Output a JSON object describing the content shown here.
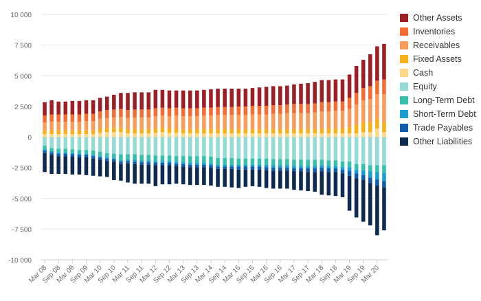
{
  "chart_data": {
    "type": "bar",
    "stacked": true,
    "title": "",
    "xlabel": "",
    "ylabel": "",
    "ylim": [
      -10000,
      10000
    ],
    "yticks": [
      -10000,
      -7500,
      -5000,
      -2500,
      0,
      2500,
      5000,
      7500,
      10000
    ],
    "ytick_labels": [
      "-10 000",
      "-7 500",
      "-5 000",
      "-2 500",
      "0",
      "2 500",
      "5 000",
      "7 500",
      "10 000"
    ],
    "grid": true,
    "legend_position": "right",
    "xtick_labels": [
      "Mar 08",
      "Sep 08",
      "Mar 09",
      "Sep 09",
      "Mar 10",
      "Sep 10",
      "Mar 11",
      "Sep 11",
      "Mar 12",
      "Sep 12",
      "Mar 13",
      "Sep 13",
      "Mar 14",
      "Sep 14",
      "Mar 15",
      "Sep 15",
      "Mar 16",
      "Sep 16",
      "Mar 17",
      "Sep 17",
      "Mar 18",
      "Sep 18",
      "Mar 19",
      "Sep 19",
      "Mar 20"
    ],
    "categories": [
      "Q1 08",
      "Q2 08",
      "Q3 08",
      "Q4 08",
      "Q1 09",
      "Q2 09",
      "Q3 09",
      "Q4 09",
      "Q1 10",
      "Q2 10",
      "Q3 10",
      "Q4 10",
      "Q1 11",
      "Q2 11",
      "Q3 11",
      "Q4 11",
      "Q1 12",
      "Q2 12",
      "Q3 12",
      "Q4 12",
      "Q1 13",
      "Q2 13",
      "Q3 13",
      "Q4 13",
      "Q1 14",
      "Q2 14",
      "Q3 14",
      "Q4 14",
      "Q1 15",
      "Q2 15",
      "Q3 15",
      "Q4 15",
      "Q1 16",
      "Q2 16",
      "Q3 16",
      "Q4 16",
      "Q1 17",
      "Q2 17",
      "Q3 17",
      "Q4 17",
      "Q1 18",
      "Q2 18",
      "Q3 18",
      "Q4 18",
      "Q1 19",
      "Q2 19",
      "Q3 19",
      "Q4 19",
      "Q1 20",
      "Q2 20"
    ],
    "asset_series": [
      {
        "name": "Cash",
        "color": "#FDD888",
        "values": [
          250,
          250,
          250,
          250,
          250,
          250,
          250,
          250,
          350,
          400,
          400,
          400,
          300,
          300,
          300,
          300,
          350,
          400,
          350,
          350,
          300,
          300,
          300,
          300,
          300,
          300,
          300,
          300,
          300,
          300,
          300,
          300,
          300,
          300,
          300,
          300,
          300,
          300,
          300,
          300,
          300,
          300,
          300,
          300,
          300,
          300,
          400,
          400,
          700,
          400
        ]
      },
      {
        "name": "Fixed Assets",
        "color": "#F5B117",
        "values": [
          300,
          300,
          300,
          300,
          300,
          300,
          300,
          300,
          350,
          350,
          350,
          350,
          350,
          350,
          350,
          350,
          350,
          350,
          350,
          350,
          350,
          350,
          350,
          350,
          350,
          350,
          350,
          350,
          350,
          350,
          350,
          350,
          350,
          350,
          350,
          350,
          350,
          350,
          350,
          350,
          400,
          400,
          400,
          400,
          500,
          700,
          800,
          800,
          800,
          800
        ]
      },
      {
        "name": "Receivables",
        "color": "#F99B59",
        "values": [
          650,
          700,
          700,
          700,
          700,
          700,
          750,
          750,
          800,
          800,
          850,
          900,
          900,
          950,
          950,
          950,
          1000,
          1000,
          1000,
          1050,
          1050,
          1050,
          1050,
          1100,
          1100,
          1150,
          1150,
          1150,
          1150,
          1150,
          1200,
          1200,
          1200,
          1250,
          1250,
          1300,
          1300,
          1300,
          1300,
          1350,
          1400,
          1400,
          1450,
          1450,
          1500,
          1650,
          1800,
          1900,
          2000,
          2300
        ]
      },
      {
        "name": "Inventories",
        "color": "#F46C31",
        "values": [
          550,
          600,
          600,
          600,
          600,
          600,
          600,
          600,
          600,
          650,
          650,
          650,
          650,
          650,
          650,
          650,
          650,
          650,
          650,
          650,
          650,
          650,
          650,
          650,
          650,
          650,
          650,
          650,
          700,
          700,
          700,
          700,
          700,
          700,
          700,
          700,
          750,
          750,
          750,
          750,
          750,
          750,
          750,
          750,
          900,
          950,
          1000,
          1050,
          1100,
          1200
        ]
      },
      {
        "name": "Other Assets",
        "color": "#9B1F24",
        "values": [
          1100,
          1150,
          1050,
          1050,
          1100,
          1100,
          1100,
          1100,
          1100,
          1100,
          1200,
          1300,
          1400,
          1400,
          1400,
          1400,
          1500,
          1450,
          1450,
          1400,
          1450,
          1450,
          1450,
          1450,
          1500,
          1500,
          1500,
          1500,
          1450,
          1450,
          1450,
          1500,
          1550,
          1550,
          1550,
          1550,
          1600,
          1650,
          1700,
          1750,
          1800,
          1800,
          1800,
          1800,
          1900,
          2200,
          2300,
          2600,
          2800,
          2900
        ]
      }
    ],
    "liability_series": [
      {
        "name": "Equity",
        "color": "#94DBD3",
        "values": [
          700,
          900,
          950,
          950,
          1000,
          1050,
          1050,
          1100,
          1200,
          1300,
          1350,
          1400,
          1400,
          1400,
          1450,
          1450,
          1500,
          1500,
          1500,
          1550,
          1550,
          1550,
          1550,
          1550,
          1600,
          1700,
          1700,
          1700,
          1750,
          1750,
          1750,
          1750,
          1750,
          1800,
          1800,
          1800,
          1850,
          1850,
          1850,
          1850,
          1850,
          1900,
          1900,
          2000,
          2000,
          2200,
          2200,
          2300,
          2300,
          2300
        ]
      },
      {
        "name": "Long-Term Debt",
        "color": "#35BFAD",
        "values": [
          300,
          250,
          300,
          300,
          300,
          300,
          300,
          350,
          350,
          350,
          350,
          500,
          450,
          450,
          450,
          450,
          450,
          450,
          450,
          450,
          500,
          550,
          550,
          550,
          550,
          550,
          550,
          550,
          500,
          500,
          500,
          500,
          500,
          500,
          500,
          500,
          500,
          500,
          500,
          500,
          450,
          450,
          450,
          450,
          450,
          450,
          500,
          500,
          550,
          600
        ]
      },
      {
        "name": "Short-Term Debt",
        "color": "#1A9ED0",
        "values": [
          100,
          100,
          100,
          100,
          100,
          100,
          100,
          100,
          100,
          100,
          100,
          100,
          100,
          150,
          150,
          150,
          150,
          150,
          150,
          150,
          150,
          150,
          150,
          150,
          150,
          150,
          150,
          150,
          150,
          150,
          150,
          150,
          200,
          200,
          200,
          200,
          200,
          200,
          200,
          200,
          200,
          200,
          200,
          200,
          300,
          300,
          400,
          500,
          600,
          700
        ]
      },
      {
        "name": "Trade Payables",
        "color": "#0F5DAA",
        "values": [
          200,
          200,
          200,
          200,
          200,
          200,
          200,
          200,
          200,
          200,
          200,
          200,
          200,
          200,
          200,
          200,
          200,
          200,
          200,
          200,
          200,
          200,
          200,
          200,
          200,
          200,
          200,
          200,
          250,
          250,
          250,
          250,
          250,
          250,
          250,
          250,
          250,
          250,
          300,
          300,
          300,
          300,
          300,
          300,
          400,
          400,
          400,
          450,
          500,
          500
        ]
      },
      {
        "name": "Other Liabilities",
        "color": "#0D2A4F",
        "values": [
          1550,
          1550,
          1450,
          1450,
          1450,
          1400,
          1450,
          1400,
          1350,
          1300,
          1500,
          1350,
          1550,
          1600,
          1550,
          1550,
          1700,
          1550,
          1550,
          1450,
          1450,
          1450,
          1450,
          1450,
          1450,
          1450,
          1450,
          1500,
          1500,
          1400,
          1350,
          1400,
          1450,
          1450,
          1450,
          1450,
          1500,
          1550,
          1550,
          1600,
          1900,
          1900,
          1950,
          1950,
          2850,
          3200,
          3400,
          3450,
          4050,
          3500
        ]
      }
    ],
    "legend": [
      "Other Assets",
      "Inventories",
      "Receivables",
      "Fixed Assets",
      "Cash",
      "Equity",
      "Long-Term Debt",
      "Short-Term Debt",
      "Trade Payables",
      "Other Liabilities"
    ]
  }
}
